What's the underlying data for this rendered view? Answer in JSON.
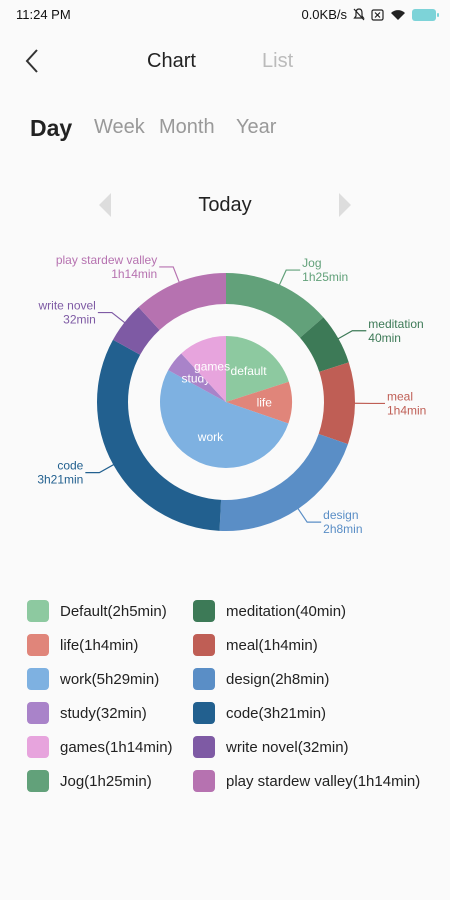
{
  "status": {
    "time": "11:24 PM",
    "net_speed": "0.0KB/s"
  },
  "header": {
    "chart_tab": "Chart",
    "list_tab": "List"
  },
  "periods": [
    "Day",
    "Week",
    "Month",
    "Year"
  ],
  "active_period": "Day",
  "date_label": "Today",
  "chart_data": {
    "type": "pie",
    "inner": {
      "type": "pie",
      "slices": [
        {
          "label": "default",
          "minutes": 125,
          "color": "#8dc9a0"
        },
        {
          "label": "life",
          "minutes": 64,
          "color": "#e0857a"
        },
        {
          "label": "work",
          "minutes": 329,
          "color": "#7eb1e1"
        },
        {
          "label": "study",
          "minutes": 32,
          "color": "#a983c9"
        },
        {
          "label": "games",
          "minutes": 74,
          "color": "#e7a4dd"
        }
      ]
    },
    "outer": {
      "type": "donut",
      "slices": [
        {
          "name": "Jog",
          "duration": "1h25min",
          "minutes": 85,
          "color": "#62a17a"
        },
        {
          "name": "meditation",
          "duration": "40min",
          "minutes": 40,
          "color": "#3d7a57"
        },
        {
          "name": "meal",
          "duration": "1h4min",
          "minutes": 64,
          "color": "#bf5e55"
        },
        {
          "name": "design",
          "duration": "2h8min",
          "minutes": 128,
          "color": "#5a8ec6"
        },
        {
          "name": "code",
          "duration": "3h21min",
          "minutes": 201,
          "color": "#22608f"
        },
        {
          "name": "write novel",
          "duration": "32min",
          "minutes": 32,
          "color": "#7e5aa4"
        },
        {
          "name": "play stardew valley",
          "duration": "1h14min",
          "minutes": 74,
          "color": "#b672b0"
        }
      ]
    }
  },
  "legend": [
    {
      "label": "Default(2h5min)",
      "color": "#8dc9a0"
    },
    {
      "label": "meditation(40min)",
      "color": "#3d7a57"
    },
    {
      "label": "life(1h4min)",
      "color": "#e0857a"
    },
    {
      "label": "meal(1h4min)",
      "color": "#bf5e55"
    },
    {
      "label": "work(5h29min)",
      "color": "#7eb1e1"
    },
    {
      "label": "design(2h8min)",
      "color": "#5a8ec6"
    },
    {
      "label": "study(32min)",
      "color": "#a983c9"
    },
    {
      "label": "code(3h21min)",
      "color": "#22608f"
    },
    {
      "label": "games(1h14min)",
      "color": "#e7a4dd"
    },
    {
      "label": "write novel(32min)",
      "color": "#7e5aa4"
    },
    {
      "label": "Jog(1h25min)",
      "color": "#62a17a"
    },
    {
      "label": "play stardew valley(1h14min)",
      "color": "#b672b0"
    }
  ]
}
